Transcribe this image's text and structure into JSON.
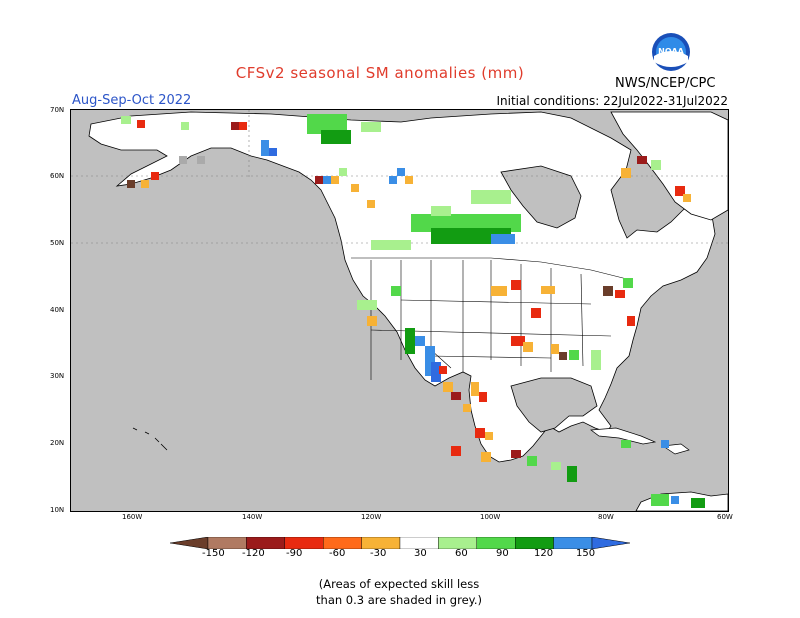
{
  "title": "CFSv2 seasonal SM anomalies (mm)",
  "period": "Aug-Sep-Oct 2022",
  "initial_conditions": "Initial conditions: 22Jul2022-31Jul2022",
  "organization": "NWS/NCEP/CPC",
  "logo_text": "NOAA",
  "lat_labels": [
    "70N",
    "60N",
    "50N",
    "40N",
    "30N",
    "20N",
    "10N"
  ],
  "lon_labels": [
    "160W",
    "140W",
    "120W",
    "100W",
    "80W",
    "60W"
  ],
  "colorbar": {
    "labels": [
      "-150",
      "-120",
      "-90",
      "-60",
      "-30",
      "30",
      "60",
      "90",
      "120",
      "150"
    ],
    "colors": [
      "#6a3d2a",
      "#b07a62",
      "#9b1b1b",
      "#e82a10",
      "#ff6a1a",
      "#f7b236",
      "#ffffff",
      "#a8f08e",
      "#52d84a",
      "#129c12",
      "#3a8ee6",
      "#2f6be0"
    ]
  },
  "colors": {
    "ocean": "#c0c0c0",
    "land": "#ffffff",
    "light_green": "#a8f08e",
    "green": "#52d84a",
    "dark_green": "#129c12",
    "blue": "#3a8ee6",
    "orange": "#f7b236",
    "red": "#e82a10",
    "dark_red": "#9b1b1b",
    "brown": "#6a3d2a",
    "grey_cell": "#aaaaaa"
  },
  "note": [
    "(Areas of expected skill less",
    "than 0.3 are shaded in grey.)"
  ]
}
